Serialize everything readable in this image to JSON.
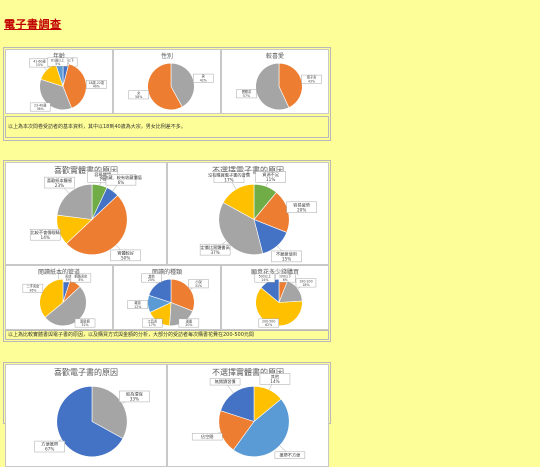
{
  "page": {
    "title": "電子書調查"
  },
  "panels": [
    {
      "caption": "以上為本次問卷受訪者的基本資料，其中以18到40歲為大宗，男女比例差不多。",
      "charts": [
        {
          "title": "年齡",
          "slices": [
            {
              "label": "18歲以下",
              "pct": "4%",
              "value": 4,
              "color": "#4472c4"
            },
            {
              "label": "18歲-22歲",
              "pct": "40%",
              "value": 40,
              "color": "#ed7d31"
            },
            {
              "label": "23-40歲",
              "pct": "36%",
              "value": 36,
              "color": "#a5a5a5"
            },
            {
              "label": "41-60歲",
              "pct": "15%",
              "value": 15,
              "color": "#ffc000"
            },
            {
              "label": "61歲以上",
              "pct": "5%",
              "value": 5,
              "color": "#5b9bd5"
            }
          ]
        },
        {
          "title": "性別",
          "slices": [
            {
              "label": "男",
              "pct": "42%",
              "value": 42,
              "color": "#a5a5a5"
            },
            {
              "label": "女",
              "pct": "58%",
              "value": 58,
              "color": "#ed7d31"
            }
          ]
        },
        {
          "title": "較喜愛",
          "slices": [
            {
              "label": "電子書",
              "pct": "43%",
              "value": 43,
              "color": "#ed7d31"
            },
            {
              "label": "實體書",
              "pct": "57%",
              "value": 57,
              "color": "#a5a5a5"
            }
          ]
        }
      ]
    },
    {
      "caption": "以上為比較實體書與電子書的原因，以及購買方式與金額的分析，大部分的受訪者每次購書花費在200-500元間",
      "charts": [
        {
          "title": "喜歡實體書的原因",
          "slices": [
            {
              "label": "容易閱讀",
              "pct": "7%",
              "value": 7,
              "color": "#70ad47"
            },
            {
              "label": "可收藏、較有收藏價值",
              "pct": "6%",
              "value": 6,
              "color": "#4472c4"
            },
            {
              "label": "實體較好",
              "pct": "50%",
              "value": 50,
              "color": "#ed7d31"
            },
            {
              "label": "比較不會傷眼睛",
              "pct": "14%",
              "value": 14,
              "color": "#ffc000"
            },
            {
              "label": "喜歡紙本觸感",
              "pct": "23%",
              "value": 23,
              "color": "#a5a5a5"
            }
          ]
        },
        {
          "title": "不選擇電子書的原因",
          "slices": [
            {
              "label": "資源不足",
              "pct": "11%",
              "value": 11,
              "color": "#70ad47"
            },
            {
              "label": "容易疲勞",
              "pct": "20%",
              "value": 20,
              "color": "#ed7d31"
            },
            {
              "label": "不願意使用",
              "pct": "15%",
              "value": 15,
              "color": "#4472c4"
            },
            {
              "label": "定價比實體書高",
              "pct": "37%",
              "value": 37,
              "color": "#a5a5a5"
            },
            {
              "label": "沒有購買電子書的習慣",
              "pct": "17%",
              "value": 17,
              "color": "#ffc000"
            }
          ]
        },
        {
          "title": "閱讀紙本的管道",
          "slices": [
            {
              "label": "書店",
              "pct": "5%",
              "value": 5,
              "color": "#4472c4"
            },
            {
              "label": "網路書店",
              "pct": "8%",
              "value": 8,
              "color": "#ed7d31"
            },
            {
              "label": "圖書館",
              "pct": "51%",
              "value": 51,
              "color": "#a5a5a5"
            },
            {
              "label": "二手書店",
              "pct": "36%",
              "value": 36,
              "color": "#ffc000"
            }
          ]
        },
        {
          "title": "閱讀的種類",
          "slices": [
            {
              "label": "小說",
              "pct": "31%",
              "value": 31,
              "color": "#ed7d31"
            },
            {
              "label": "漫畫",
              "pct": "20%",
              "value": 20,
              "color": "#a5a5a5"
            },
            {
              "label": "工具書",
              "pct": "17%",
              "value": 17,
              "color": "#ffc000"
            },
            {
              "label": "雜誌",
              "pct": "12%",
              "value": 12,
              "color": "#5b9bd5"
            },
            {
              "label": "其他",
              "pct": "20%",
              "value": 20,
              "color": "#4472c4"
            }
          ]
        },
        {
          "title": "願意花多少錢購買",
          "slices": [
            {
              "label": "100以下",
              "pct": "6%",
              "value": 6,
              "color": "#ed7d31"
            },
            {
              "label": "100-200",
              "pct": "18%",
              "value": 18,
              "color": "#a5a5a5"
            },
            {
              "label": "200-500",
              "pct": "62%",
              "value": 62,
              "color": "#ffc000"
            },
            {
              "label": "500以上",
              "pct": "14%",
              "value": 14,
              "color": "#4472c4"
            }
          ]
        }
      ]
    },
    {
      "caption": "",
      "charts": [
        {
          "title": "喜歡電子書的原因",
          "slices": [
            {
              "label": "較為環保",
              "pct": "33%",
              "value": 33,
              "color": "#a5a5a5"
            },
            {
              "label": "方便攜帶",
              "pct": "67%",
              "value": 67,
              "color": "#4472c4"
            }
          ]
        },
        {
          "title": "不選擇實體書的原因",
          "slices": [
            {
              "label": "其他",
              "pct": "14%",
              "value": 14,
              "color": "#ffc000"
            },
            {
              "label": "攜帶不方便",
              "pct": "",
              "value": 46,
              "color": "#5b9bd5"
            },
            {
              "label": "佔空間",
              "pct": "",
              "value": 20,
              "color": "#ed7d31"
            },
            {
              "label": "無閱讀習慣",
              "pct": "",
              "value": 20,
              "color": "#4472c4"
            }
          ]
        }
      ]
    }
  ]
}
